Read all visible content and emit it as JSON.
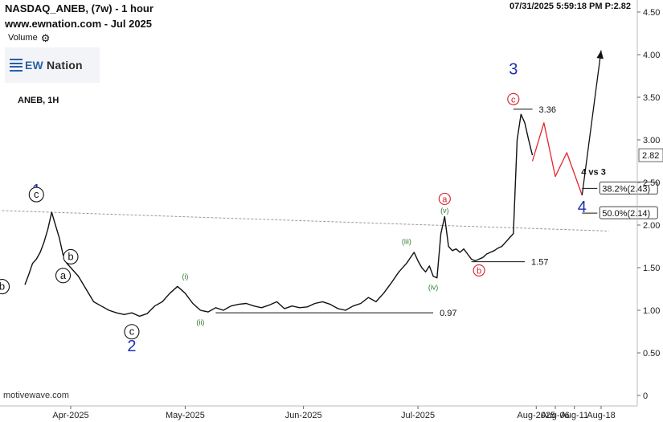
{
  "header": {
    "title": "NASDAQ_ANEB, (7w) - 1 hour",
    "site": "www.ewnation.com  - Jul 2025",
    "volume_label": "Volume",
    "datetime": "07/31/2025 5:59:18 PM  P:2.82",
    "logo_text_accent": "EW",
    "logo_text": " Nation",
    "symbol": "ANEB, 1H",
    "footer": "motivewave.com"
  },
  "chart_data": {
    "type": "line",
    "title": "NASDAQ_ANEB, (7w) - 1 hour",
    "xlabel": "",
    "ylabel": "",
    "ylim": [
      0,
      4.65
    ],
    "y_ticks": [
      "0",
      "0.50",
      "1.00",
      "1.50",
      "2.00",
      "2.50",
      "3.00",
      "3.50",
      "4.00",
      "4.50"
    ],
    "x_ticks": [
      "Apr-2025",
      "May-2025",
      "Jun-2025",
      "Jul-2025",
      "Aug-2025",
      "Aug-06",
      "Aug-11",
      "Aug-18"
    ],
    "last_price": "2.82",
    "series": [
      {
        "name": "",
        "x": [
          "2025-03-20",
          "2025-03-21",
          "2025-03-22",
          "2025-03-23",
          "2025-03-24",
          "2025-03-25",
          "2025-03-26",
          "2025-03-27",
          "2025-03-28",
          "2025-03-29",
          "2025-03-30",
          "2025-03-31",
          "2025-04-01",
          "2025-04-03",
          "2025-04-05",
          "2025-04-07",
          "2025-04-09",
          "2025-04-11",
          "2025-04-13",
          "2025-04-15",
          "2025-04-17",
          "2025-04-19",
          "2025-04-21",
          "2025-04-23",
          "2025-04-25",
          "2025-04-27",
          "2025-04-29",
          "2025-05-01",
          "2025-05-03",
          "2025-05-05",
          "2025-05-07",
          "2025-05-09",
          "2025-05-11",
          "2025-05-13",
          "2025-05-15",
          "2025-05-17",
          "2025-05-19",
          "2025-05-21",
          "2025-05-23",
          "2025-05-25",
          "2025-05-27",
          "2025-05-29",
          "2025-05-31",
          "2025-06-02",
          "2025-06-04",
          "2025-06-06",
          "2025-06-08",
          "2025-06-10",
          "2025-06-12",
          "2025-06-14",
          "2025-06-16",
          "2025-06-18",
          "2025-06-20",
          "2025-06-22",
          "2025-06-24",
          "2025-06-26",
          "2025-06-28",
          "2025-06-30",
          "2025-07-01",
          "2025-07-02",
          "2025-07-03",
          "2025-07-04",
          "2025-07-05",
          "2025-07-06",
          "2025-07-07",
          "2025-07-08",
          "2025-07-09",
          "2025-07-10",
          "2025-07-11",
          "2025-07-12",
          "2025-07-13",
          "2025-07-14",
          "2025-07-15",
          "2025-07-16",
          "2025-07-17",
          "2025-07-18",
          "2025-07-19",
          "2025-07-20",
          "2025-07-21",
          "2025-07-22",
          "2025-07-23",
          "2025-07-24",
          "2025-07-25",
          "2025-07-26",
          "2025-07-27",
          "2025-07-28",
          "2025-07-29",
          "2025-07-30",
          "2025-07-31"
        ],
        "values": [
          1.3,
          1.42,
          1.55,
          1.6,
          1.68,
          1.8,
          1.95,
          2.15,
          2.0,
          1.85,
          1.65,
          1.55,
          1.5,
          1.4,
          1.25,
          1.1,
          1.05,
          1.0,
          0.97,
          0.95,
          0.97,
          0.93,
          0.96,
          1.05,
          1.1,
          1.2,
          1.28,
          1.2,
          1.08,
          1.0,
          0.98,
          1.03,
          1.0,
          1.05,
          1.07,
          1.08,
          1.05,
          1.03,
          1.06,
          1.1,
          1.02,
          1.05,
          1.03,
          1.04,
          1.08,
          1.1,
          1.07,
          1.02,
          1.0,
          1.05,
          1.08,
          1.15,
          1.1,
          1.2,
          1.32,
          1.45,
          1.55,
          1.68,
          1.58,
          1.5,
          1.45,
          1.52,
          1.4,
          1.38,
          1.9,
          2.1,
          1.75,
          1.7,
          1.72,
          1.68,
          1.72,
          1.66,
          1.6,
          1.58,
          1.6,
          1.62,
          1.66,
          1.68,
          1.7,
          1.73,
          1.75,
          1.8,
          1.85,
          1.9,
          3.0,
          3.3,
          3.2,
          3.0,
          2.82
        ]
      },
      {
        "name": "",
        "x": [
          "2025-07-31",
          "2025-08-03",
          "2025-08-06",
          "2025-08-09",
          "2025-08-13"
        ],
        "values": [
          2.75,
          3.2,
          2.57,
          2.85,
          2.35
        ]
      },
      {
        "name": "",
        "x": [
          "2025-08-13",
          "2025-08-18"
        ],
        "values": [
          2.35,
          4.05
        ]
      }
    ],
    "levels": [
      {
        "label": "3.36",
        "value": 3.36,
        "x_start": "2025-07-26",
        "x_end": "2025-07-31"
      },
      {
        "label": "1.57",
        "value": 1.57,
        "x_start": "2025-07-15",
        "x_end": "2025-07-29"
      },
      {
        "label": "0.97",
        "value": 0.97,
        "x_start": "2025-05-09",
        "x_end": "2025-07-05"
      },
      {
        "label": "38.2%(2.43)",
        "value": 2.43,
        "x_start": "2025-08-13",
        "x_end": "2025-08-17"
      },
      {
        "label": "50.0%(2.14)",
        "value": 2.14,
        "x_start": "2025-08-13",
        "x_end": "2025-08-17"
      }
    ],
    "fib_title": "4 vs 3",
    "trendline": {
      "x": [
        "2025-03-14",
        "2025-08-20"
      ],
      "values": [
        2.17,
        1.93
      ]
    },
    "wave_labels": [
      {
        "text": "1",
        "x": "2025-03-23",
        "y": 2.35,
        "style": "major"
      },
      {
        "text": "2",
        "x": "2025-04-17",
        "y": 0.52,
        "style": "major"
      },
      {
        "text": "3",
        "x": "2025-07-26",
        "y": 3.77,
        "style": "major"
      },
      {
        "text": "4",
        "x": "2025-08-13",
        "y": 2.15,
        "style": "major"
      },
      {
        "text": "c",
        "x": "2025-03-23",
        "y": 2.32,
        "style": "circle-black"
      },
      {
        "text": "b",
        "x": "2025-03-14",
        "y": 1.24,
        "style": "circle-black"
      },
      {
        "text": "a",
        "x": "2025-03-30",
        "y": 1.37,
        "style": "circle-black"
      },
      {
        "text": "b",
        "x": "2025-04-01",
        "y": 1.59,
        "style": "circle-black"
      },
      {
        "text": "c",
        "x": "2025-04-17",
        "y": 0.71,
        "style": "circle-black"
      },
      {
        "text": "a",
        "x": "2025-07-08",
        "y": 2.27,
        "style": "circle-red"
      },
      {
        "text": "c",
        "x": "2025-07-26",
        "y": 3.44,
        "style": "circle-red"
      },
      {
        "text": "b",
        "x": "2025-07-17",
        "y": 1.43,
        "style": "circle-red"
      },
      {
        "text": "(i)",
        "x": "2025-05-01",
        "y": 1.37,
        "style": "minor"
      },
      {
        "text": "(ii)",
        "x": "2025-05-05",
        "y": 0.83,
        "style": "minor"
      },
      {
        "text": "(iii)",
        "x": "2025-06-28",
        "y": 1.78,
        "style": "minor"
      },
      {
        "text": "(iv)",
        "x": "2025-07-05",
        "y": 1.24,
        "style": "minor"
      },
      {
        "text": "(v)",
        "x": "2025-07-08",
        "y": 2.14,
        "style": "minor"
      }
    ],
    "colors": {
      "price": "#111111",
      "projection": "#e8232b",
      "major_label": "#1f2fb0",
      "minor_label": "#2f7a2f",
      "red_label": "#d4212a"
    }
  }
}
